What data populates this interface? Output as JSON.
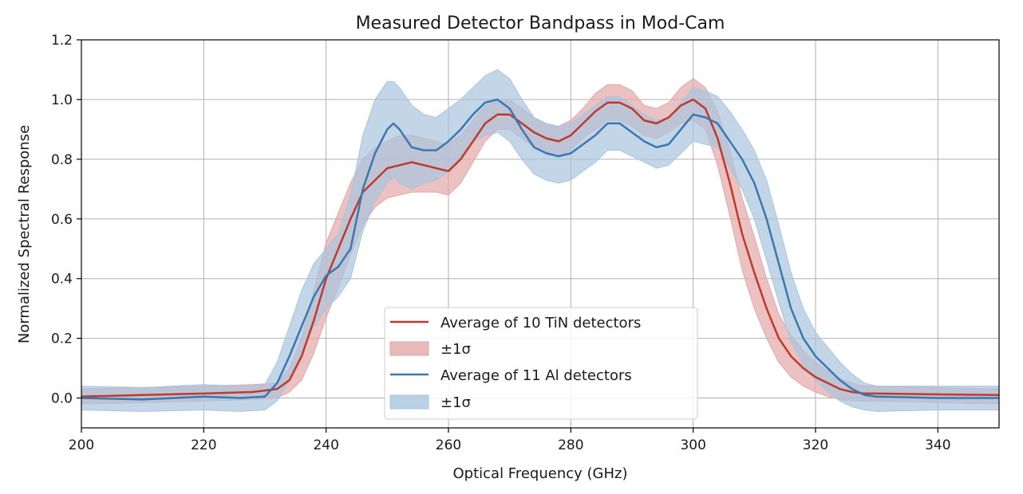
{
  "chart_data": {
    "type": "line",
    "title": "Measured Detector Bandpass in Mod-Cam",
    "xlabel": "Optical Frequency (GHz)",
    "ylabel": "Normalized Spectral Response",
    "xlim": [
      200,
      350
    ],
    "ylim": [
      -0.1,
      1.2
    ],
    "xticks": [
      200,
      220,
      240,
      260,
      280,
      300,
      320,
      340
    ],
    "xtick_labels": [
      "200",
      "220",
      "240",
      "260",
      "280",
      "300",
      "320",
      "340"
    ],
    "yticks": [
      0.0,
      0.2,
      0.4,
      0.6,
      0.8,
      1.0,
      1.2
    ],
    "ytick_labels": [
      "0.0",
      "0.2",
      "0.4",
      "0.6",
      "0.8",
      "1.0",
      "1.2"
    ],
    "grid": true,
    "legend_position": "bottom-center",
    "series": [
      {
        "name": "Average of 10 TiN detectors",
        "band_label": "±1σ",
        "color": "#c0392b",
        "band_color": "#e3a6a6",
        "x": [
          200,
          210,
          220,
          228,
          232,
          234,
          236,
          238,
          240,
          242,
          244,
          246,
          248,
          250,
          252,
          254,
          256,
          258,
          260,
          262,
          264,
          266,
          268,
          270,
          272,
          274,
          276,
          278,
          280,
          282,
          284,
          286,
          288,
          290,
          292,
          294,
          296,
          298,
          300,
          302,
          304,
          306,
          308,
          310,
          312,
          314,
          316,
          318,
          320,
          322,
          324,
          326,
          328,
          330,
          340,
          350
        ],
        "y": [
          0.005,
          0.01,
          0.015,
          0.02,
          0.03,
          0.06,
          0.14,
          0.26,
          0.4,
          0.5,
          0.6,
          0.69,
          0.73,
          0.77,
          0.78,
          0.79,
          0.78,
          0.77,
          0.76,
          0.8,
          0.86,
          0.92,
          0.95,
          0.95,
          0.92,
          0.89,
          0.87,
          0.86,
          0.88,
          0.92,
          0.96,
          0.99,
          0.99,
          0.97,
          0.93,
          0.92,
          0.94,
          0.98,
          1.0,
          0.97,
          0.87,
          0.72,
          0.55,
          0.42,
          0.3,
          0.2,
          0.14,
          0.1,
          0.07,
          0.05,
          0.03,
          0.02,
          0.015,
          0.015,
          0.012,
          0.01
        ],
        "low": [
          -0.02,
          -0.015,
          -0.01,
          -0.005,
          0.0,
          0.02,
          0.06,
          0.15,
          0.27,
          0.37,
          0.48,
          0.58,
          0.64,
          0.67,
          0.68,
          0.69,
          0.69,
          0.69,
          0.68,
          0.72,
          0.79,
          0.86,
          0.9,
          0.9,
          0.87,
          0.84,
          0.82,
          0.81,
          0.83,
          0.87,
          0.9,
          0.93,
          0.93,
          0.91,
          0.88,
          0.87,
          0.89,
          0.92,
          0.93,
          0.9,
          0.78,
          0.61,
          0.43,
          0.3,
          0.2,
          0.12,
          0.07,
          0.04,
          0.02,
          0.005,
          -0.005,
          -0.01,
          -0.01,
          -0.01,
          -0.015,
          -0.02
        ],
        "high": [
          0.03,
          0.035,
          0.04,
          0.045,
          0.05,
          0.1,
          0.2,
          0.36,
          0.52,
          0.62,
          0.72,
          0.8,
          0.84,
          0.86,
          0.88,
          0.88,
          0.87,
          0.86,
          0.85,
          0.88,
          0.93,
          0.98,
          1.0,
          1.0,
          0.97,
          0.94,
          0.92,
          0.91,
          0.93,
          0.97,
          1.02,
          1.05,
          1.05,
          1.03,
          0.98,
          0.97,
          0.99,
          1.04,
          1.07,
          1.04,
          0.96,
          0.83,
          0.67,
          0.54,
          0.4,
          0.28,
          0.21,
          0.16,
          0.12,
          0.09,
          0.065,
          0.05,
          0.04,
          0.04,
          0.035,
          0.03
        ]
      },
      {
        "name": "Average of 11 Al detectors",
        "band_label": "±1σ",
        "color": "#3a78b2",
        "band_color": "#a9c4de",
        "x": [
          200,
          210,
          220,
          226,
          230,
          232,
          234,
          236,
          238,
          240,
          242,
          244,
          246,
          248,
          250,
          251,
          252,
          254,
          256,
          258,
          260,
          262,
          264,
          266,
          268,
          270,
          272,
          274,
          276,
          278,
          280,
          282,
          284,
          286,
          288,
          290,
          292,
          294,
          296,
          298,
          300,
          302,
          304,
          306,
          308,
          310,
          312,
          314,
          316,
          318,
          320,
          322,
          324,
          326,
          328,
          330,
          340,
          350
        ],
        "y": [
          0.0,
          -0.005,
          0.005,
          0.0,
          0.005,
          0.05,
          0.14,
          0.24,
          0.34,
          0.41,
          0.44,
          0.5,
          0.7,
          0.82,
          0.9,
          0.92,
          0.9,
          0.84,
          0.83,
          0.83,
          0.86,
          0.9,
          0.95,
          0.99,
          1.0,
          0.97,
          0.9,
          0.84,
          0.82,
          0.81,
          0.82,
          0.85,
          0.88,
          0.92,
          0.92,
          0.89,
          0.86,
          0.84,
          0.85,
          0.9,
          0.95,
          0.94,
          0.92,
          0.86,
          0.8,
          0.72,
          0.6,
          0.45,
          0.3,
          0.2,
          0.14,
          0.1,
          0.06,
          0.03,
          0.01,
          0.005,
          0.0,
          0.0
        ],
        "low": [
          -0.04,
          -0.045,
          -0.04,
          -0.045,
          -0.04,
          -0.01,
          0.06,
          0.15,
          0.24,
          0.3,
          0.34,
          0.4,
          0.56,
          0.66,
          0.72,
          0.74,
          0.72,
          0.7,
          0.72,
          0.73,
          0.76,
          0.81,
          0.86,
          0.88,
          0.89,
          0.86,
          0.8,
          0.75,
          0.73,
          0.72,
          0.73,
          0.76,
          0.79,
          0.83,
          0.83,
          0.81,
          0.79,
          0.77,
          0.78,
          0.82,
          0.86,
          0.85,
          0.84,
          0.77,
          0.7,
          0.6,
          0.46,
          0.32,
          0.19,
          0.11,
          0.06,
          0.02,
          -0.01,
          -0.03,
          -0.04,
          -0.045,
          -0.04,
          -0.04
        ],
        "high": [
          0.04,
          0.035,
          0.045,
          0.04,
          0.045,
          0.12,
          0.24,
          0.36,
          0.45,
          0.5,
          0.55,
          0.68,
          0.88,
          1.0,
          1.06,
          1.06,
          1.04,
          0.98,
          0.95,
          0.94,
          0.97,
          1.0,
          1.04,
          1.08,
          1.1,
          1.07,
          1.0,
          0.94,
          0.92,
          0.91,
          0.92,
          0.95,
          0.98,
          1.01,
          1.01,
          0.98,
          0.95,
          0.93,
          0.94,
          0.99,
          1.04,
          1.03,
          1.01,
          0.96,
          0.9,
          0.83,
          0.73,
          0.58,
          0.42,
          0.3,
          0.22,
          0.17,
          0.12,
          0.08,
          0.05,
          0.04,
          0.04,
          0.04
        ]
      }
    ]
  }
}
